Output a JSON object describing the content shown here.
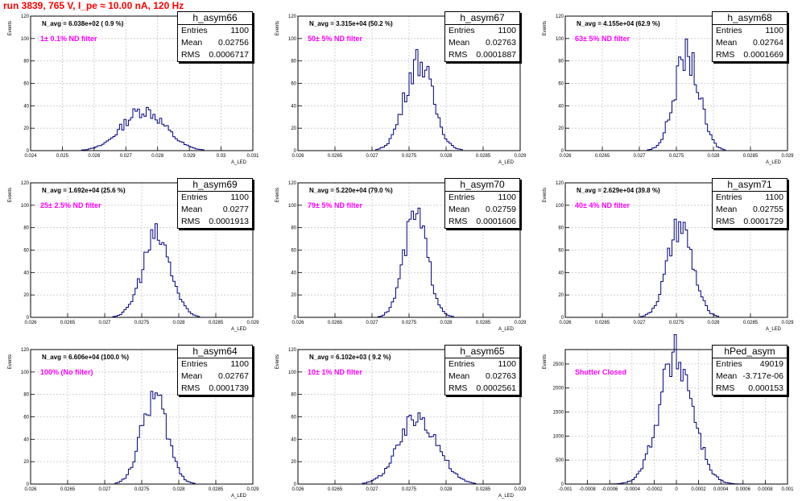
{
  "run_title": "run 3839,   765 V, I_pe ≈ 10.00 nA, 120 Hz",
  "stat_labels": {
    "entries": "Entries",
    "mean": "Mean",
    "rms": "RMS"
  },
  "chart_data": [
    {
      "type": "bar",
      "title": "h_asym66",
      "navg": "N_avg = 6.038e+02 ( 0.9 %)",
      "filter": "1± 0.1% ND filter",
      "entries": "1100",
      "mean": "0.02756",
      "rms": "0.0006717",
      "xlabel": "A_LED",
      "ylabel": "Events",
      "xlim": [
        0.024,
        0.031
      ],
      "ylim": [
        0,
        120
      ],
      "xticks": [
        0.024,
        0.025,
        0.026,
        0.027,
        0.028,
        0.029,
        0.03,
        0.031
      ],
      "xticklabels": [
        "0.024",
        "0.025",
        "0.026",
        "0.027",
        "0.028",
        "0.029",
        "0.03",
        "0.031"
      ],
      "yticks": [
        0,
        20,
        40,
        60,
        80,
        100,
        120
      ],
      "center": 0.02756,
      "sigma": 0.00067,
      "peak": 36,
      "nbins": 100,
      "grid": true
    },
    {
      "type": "bar",
      "title": "h_asym67",
      "navg": "N_avg = 3.315e+04 (50.2 %)",
      "filter": "50± 5% ND filter",
      "entries": "1100",
      "mean": "0.02763",
      "rms": "0.0001887",
      "xlabel": "A_LED",
      "ylabel": "Events",
      "xlim": [
        0.026,
        0.029
      ],
      "ylim": [
        0,
        120
      ],
      "xticks": [
        0.026,
        0.0265,
        0.027,
        0.0275,
        0.028,
        0.0285,
        0.029
      ],
      "xticklabels": [
        "0.026",
        "0.0265",
        "0.027",
        "0.0275",
        "0.028",
        "0.0285",
        "0.029"
      ],
      "yticks": [
        0,
        20,
        40,
        60,
        80,
        100,
        120
      ],
      "center": 0.02763,
      "sigma": 0.00019,
      "peak": 80,
      "nbins": 100,
      "grid": true
    },
    {
      "type": "bar",
      "title": "h_asym68",
      "navg": "N_avg = 4.155e+04 (62.9 %)",
      "filter": "63± 5% ND filter",
      "entries": "1100",
      "mean": "0.02764",
      "rms": "0.0001669",
      "xlabel": "A_LED",
      "ylabel": "Events",
      "xlim": [
        0.026,
        0.029
      ],
      "ylim": [
        0,
        120
      ],
      "xticks": [
        0.026,
        0.0265,
        0.027,
        0.0275,
        0.028,
        0.0285,
        0.029
      ],
      "xticklabels": [
        "0.026",
        "0.0265",
        "0.027",
        "0.0275",
        "0.028",
        "0.0285",
        "0.029"
      ],
      "yticks": [
        0,
        20,
        40,
        60,
        80,
        100,
        120
      ],
      "center": 0.02764,
      "sigma": 0.000167,
      "peak": 85,
      "nbins": 100,
      "grid": true
    },
    {
      "type": "bar",
      "title": "h_asym69",
      "navg": "N_avg = 1.692e+04 (25.6 %)",
      "filter": "25± 2.5% ND filter",
      "entries": "1100",
      "mean": "0.0277",
      "rms": "0.0001913",
      "xlabel": "A_LED",
      "ylabel": "Events",
      "xlim": [
        0.026,
        0.029
      ],
      "ylim": [
        0,
        120
      ],
      "xticks": [
        0.026,
        0.0265,
        0.027,
        0.0275,
        0.028,
        0.0285,
        0.029
      ],
      "xticklabels": [
        "0.026",
        "0.0265",
        "0.027",
        "0.0275",
        "0.028",
        "0.0285",
        "0.029"
      ],
      "yticks": [
        0,
        20,
        40,
        60,
        80,
        100,
        120
      ],
      "center": 0.0277,
      "sigma": 0.00019,
      "peak": 72,
      "nbins": 100,
      "grid": true
    },
    {
      "type": "bar",
      "title": "h_asym70",
      "navg": "N_avg = 5.220e+04 (79.0 %)",
      "filter": "79± 5% ND filter",
      "entries": "1100",
      "mean": "0.02759",
      "rms": "0.0001606",
      "xlabel": "A_LED",
      "ylabel": "Events",
      "xlim": [
        0.026,
        0.029
      ],
      "ylim": [
        0,
        120
      ],
      "xticks": [
        0.026,
        0.0265,
        0.027,
        0.0275,
        0.028,
        0.0285,
        0.029
      ],
      "xticklabels": [
        "0.026",
        "0.0265",
        "0.027",
        "0.0275",
        "0.028",
        "0.0285",
        "0.029"
      ],
      "yticks": [
        0,
        20,
        40,
        60,
        80,
        100,
        120
      ],
      "center": 0.02759,
      "sigma": 0.00016,
      "peak": 90,
      "nbins": 100,
      "grid": true
    },
    {
      "type": "bar",
      "title": "h_asym71",
      "navg": "N_avg = 2.629e+04 (39.8 %)",
      "filter": "40± 4% ND filter",
      "entries": "1100",
      "mean": "0.02755",
      "rms": "0.0001729",
      "xlabel": "A_LED",
      "ylabel": "Events",
      "xlim": [
        0.026,
        0.029
      ],
      "ylim": [
        0,
        120
      ],
      "xticks": [
        0.026,
        0.0265,
        0.027,
        0.0275,
        0.028,
        0.0285,
        0.029
      ],
      "xticklabels": [
        "0.026",
        "0.0265",
        "0.027",
        "0.0275",
        "0.028",
        "0.0285",
        "0.029"
      ],
      "yticks": [
        0,
        20,
        40,
        60,
        80,
        100,
        120
      ],
      "center": 0.02755,
      "sigma": 0.00017,
      "peak": 80,
      "nbins": 100,
      "grid": true
    },
    {
      "type": "bar",
      "title": "h_asym64",
      "navg": "N_avg = 6.606e+04 (100.0 %)",
      "filter": "100% (No filter)",
      "entries": "1100",
      "mean": "0.02767",
      "rms": "0.0001739",
      "xlabel": "A_LED",
      "ylabel": "Events",
      "xlim": [
        0.026,
        0.029
      ],
      "ylim": [
        0,
        120
      ],
      "xticks": [
        0.026,
        0.0265,
        0.027,
        0.0275,
        0.028,
        0.0285,
        0.029
      ],
      "xticklabels": [
        "0.026",
        "0.0265",
        "0.027",
        "0.0275",
        "0.028",
        "0.0285",
        "0.029"
      ],
      "yticks": [
        0,
        20,
        40,
        60,
        80,
        100,
        120
      ],
      "center": 0.02767,
      "sigma": 0.000174,
      "peak": 78,
      "nbins": 100,
      "grid": true
    },
    {
      "type": "bar",
      "title": "h_asym65",
      "navg": "N_avg = 6.102e+03 ( 9.2 %)",
      "filter": "10± 1% ND filter",
      "entries": "1100",
      "mean": "0.02763",
      "rms": "0.0002561",
      "xlabel": "A_LED",
      "ylabel": "Events",
      "xlim": [
        0.026,
        0.029
      ],
      "ylim": [
        0,
        120
      ],
      "xticks": [
        0.026,
        0.0265,
        0.027,
        0.0275,
        0.028,
        0.0285,
        0.029
      ],
      "xticklabels": [
        "0.026",
        "0.0265",
        "0.027",
        "0.0275",
        "0.028",
        "0.0285",
        "0.029"
      ],
      "yticks": [
        0,
        20,
        40,
        60,
        80,
        100,
        120
      ],
      "center": 0.02763,
      "sigma": 0.000256,
      "peak": 60,
      "nbins": 100,
      "grid": true
    },
    {
      "type": "bar",
      "title": "hPed_asym",
      "navg": "",
      "filter": "Shutter Closed",
      "entries": "49019",
      "mean": "-3.717e-06",
      "rms": "0.000153",
      "xlabel": "",
      "ylabel": "Events",
      "xlim": [
        -0.001,
        0.001
      ],
      "ylim": [
        0,
        2800
      ],
      "xticks": [
        -0.001,
        -0.0008,
        -0.0006,
        -0.0004,
        -0.0002,
        0,
        0.0002,
        0.0004,
        0.0006,
        0.0008,
        0.001
      ],
      "xticklabels": [
        "-0.001",
        "-0.0008",
        "-0.0006",
        "-0.0004",
        "-0.0002",
        "0",
        "0.0002",
        "0.0004",
        "0.0006",
        "0.0008",
        "0.001"
      ],
      "yticks": [
        0,
        500,
        1000,
        1500,
        2000,
        2500
      ],
      "center": -3.7e-06,
      "sigma": 0.000153,
      "peak": 2650,
      "nbins": 100,
      "grid": true
    }
  ]
}
